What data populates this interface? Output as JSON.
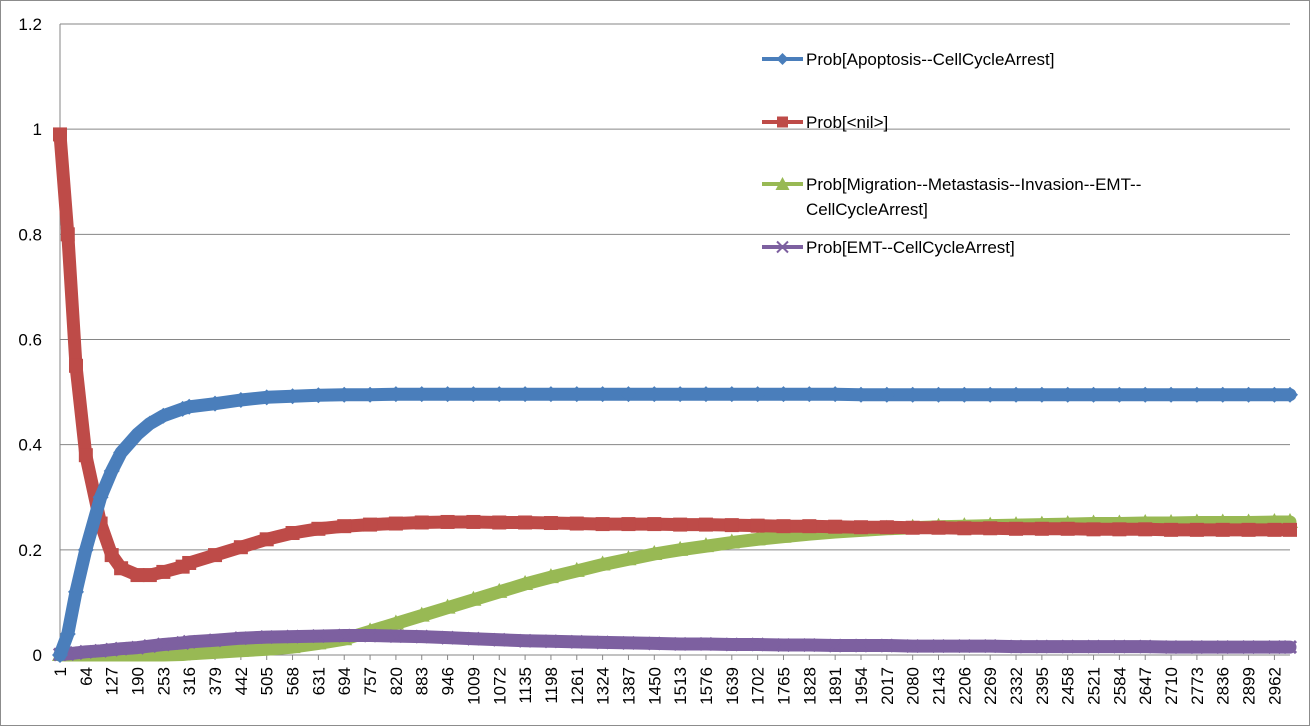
{
  "chart_data": {
    "type": "line",
    "title": "",
    "xlabel": "",
    "ylabel": "",
    "ylim": [
      0,
      1.2
    ],
    "yticks": [
      "0",
      "0.2",
      "0.4",
      "0.6",
      "0.8",
      "1",
      "1.2"
    ],
    "grid": true,
    "legend_position": "top-right",
    "x_range": [
      1,
      3000
    ],
    "x_tick_labels": [
      "1",
      "64",
      "127",
      "190",
      "253",
      "316",
      "379",
      "442",
      "505",
      "568",
      "631",
      "694",
      "757",
      "820",
      "883",
      "946",
      "1009",
      "1072",
      "1135",
      "1198",
      "1261",
      "1324",
      "1387",
      "1450",
      "1513",
      "1576",
      "1639",
      "1702",
      "1765",
      "1828",
      "1891",
      "1954",
      "2017",
      "2080",
      "2143",
      "2206",
      "2269",
      "2332",
      "2395",
      "2458",
      "2521",
      "2584",
      "2647",
      "2710",
      "2773",
      "2836",
      "2899",
      "2962"
    ],
    "x": [
      1,
      20,
      40,
      64,
      100,
      127,
      150,
      190,
      220,
      253,
      300,
      316,
      379,
      442,
      505,
      568,
      631,
      694,
      757,
      820,
      883,
      946,
      1009,
      1072,
      1135,
      1198,
      1261,
      1324,
      1387,
      1450,
      1513,
      1576,
      1639,
      1702,
      1765,
      1828,
      1891,
      1954,
      2017,
      2080,
      2143,
      2206,
      2269,
      2332,
      2395,
      2458,
      2521,
      2584,
      2647,
      2710,
      2773,
      2836,
      2899,
      2962,
      3000
    ],
    "series": [
      {
        "name": "Prob[Apoptosis--CellCycleArrest]",
        "color": "#4a7ebb",
        "marker": "diamond",
        "values": [
          0,
          0.04,
          0.12,
          0.2,
          0.3,
          0.35,
          0.385,
          0.42,
          0.44,
          0.455,
          0.468,
          0.472,
          0.478,
          0.485,
          0.49,
          0.492,
          0.494,
          0.495,
          0.495,
          0.496,
          0.496,
          0.496,
          0.496,
          0.496,
          0.496,
          0.496,
          0.496,
          0.496,
          0.496,
          0.496,
          0.496,
          0.496,
          0.496,
          0.496,
          0.496,
          0.496,
          0.496,
          0.495,
          0.495,
          0.495,
          0.495,
          0.495,
          0.495,
          0.495,
          0.495,
          0.495,
          0.495,
          0.495,
          0.495,
          0.495,
          0.495,
          0.495,
          0.495,
          0.495,
          0.495
        ]
      },
      {
        "name": "Prob[<nil>]",
        "color": "#be4b48",
        "marker": "square",
        "values": [
          0.99,
          0.8,
          0.55,
          0.38,
          0.25,
          0.19,
          0.165,
          0.152,
          0.152,
          0.158,
          0.168,
          0.175,
          0.19,
          0.205,
          0.22,
          0.232,
          0.24,
          0.245,
          0.248,
          0.25,
          0.252,
          0.253,
          0.253,
          0.252,
          0.252,
          0.251,
          0.25,
          0.249,
          0.249,
          0.249,
          0.248,
          0.248,
          0.247,
          0.246,
          0.245,
          0.245,
          0.244,
          0.243,
          0.243,
          0.242,
          0.242,
          0.241,
          0.241,
          0.24,
          0.24,
          0.24,
          0.239,
          0.239,
          0.239,
          0.238,
          0.238,
          0.238,
          0.238,
          0.238,
          0.238
        ]
      },
      {
        "name": "Prob[Migration--Metastasis--Invasion--EMT--CellCycleArrest]",
        "color": "#98b954",
        "marker": "triangle",
        "values": [
          0,
          0,
          0,
          0,
          0,
          0,
          0,
          0,
          0,
          0,
          0.001,
          0.002,
          0.005,
          0.008,
          0.011,
          0.015,
          0.022,
          0.03,
          0.045,
          0.06,
          0.075,
          0.09,
          0.105,
          0.12,
          0.135,
          0.148,
          0.16,
          0.172,
          0.182,
          0.192,
          0.2,
          0.207,
          0.214,
          0.22,
          0.225,
          0.23,
          0.234,
          0.237,
          0.24,
          0.242,
          0.244,
          0.245,
          0.246,
          0.247,
          0.248,
          0.249,
          0.25,
          0.25,
          0.251,
          0.251,
          0.252,
          0.252,
          0.252,
          0.253,
          0.253
        ]
      },
      {
        "name": "Prob[EMT--CellCycleArrest]",
        "color": "#7d60a0",
        "marker": "x",
        "values": [
          0.001,
          0.002,
          0.004,
          0.006,
          0.008,
          0.01,
          0.012,
          0.014,
          0.017,
          0.02,
          0.023,
          0.025,
          0.028,
          0.032,
          0.034,
          0.035,
          0.036,
          0.037,
          0.037,
          0.036,
          0.035,
          0.033,
          0.031,
          0.029,
          0.027,
          0.026,
          0.025,
          0.024,
          0.023,
          0.022,
          0.021,
          0.021,
          0.02,
          0.02,
          0.019,
          0.019,
          0.018,
          0.018,
          0.018,
          0.017,
          0.017,
          0.017,
          0.017,
          0.016,
          0.016,
          0.016,
          0.016,
          0.016,
          0.016,
          0.015,
          0.015,
          0.015,
          0.015,
          0.015,
          0.015
        ]
      }
    ]
  },
  "legend": {
    "s0": "Prob[Apoptosis--CellCycleArrest]",
    "s1": "Prob[<nil>]",
    "s2_line1": "Prob[Migration--Metastasis--Invasion--EMT--",
    "s2_line2": "CellCycleArrest]",
    "s3": "Prob[EMT--CellCycleArrest]"
  }
}
